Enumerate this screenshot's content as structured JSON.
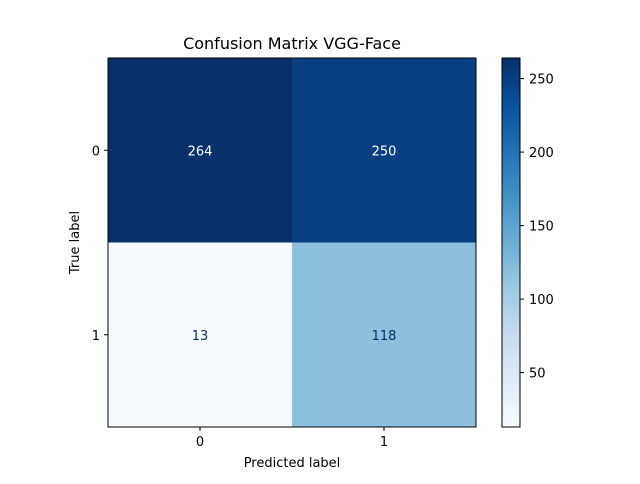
{
  "chart_data": {
    "type": "heatmap",
    "title": "Confusion Matrix VGG-Face",
    "xlabel": "Predicted label",
    "ylabel": "True label",
    "x_categories": [
      "0",
      "1"
    ],
    "y_categories": [
      "0",
      "1"
    ],
    "matrix": [
      [
        264,
        250
      ],
      [
        13,
        118
      ]
    ],
    "colormap": "Blues",
    "colorbar": {
      "range": [
        13,
        264
      ],
      "ticks": [
        50,
        100,
        150,
        200,
        250
      ]
    }
  }
}
